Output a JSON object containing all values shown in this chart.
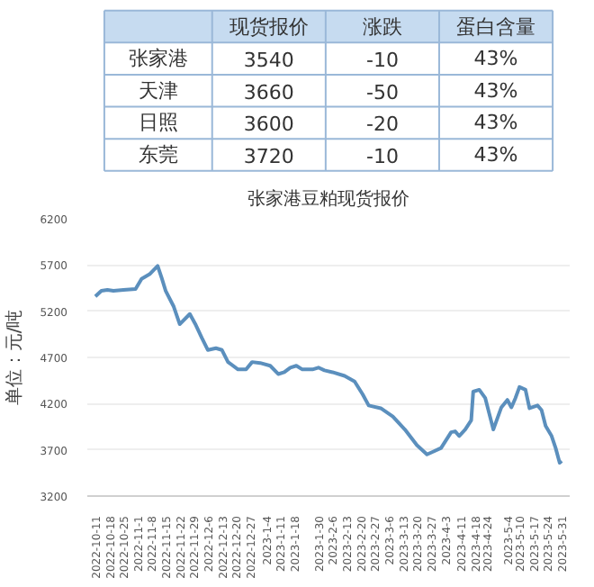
{
  "chart_data": [
    {
      "type": "other",
      "categories": [
        "现货报价",
        "涨跌",
        "蛋白含量"
      ],
      "y_categories": [
        "张家港",
        "天津",
        "日照",
        "东莞"
      ],
      "cell_labels": [
        [
          "3540",
          "-10",
          "43%"
        ],
        [
          "3660",
          "-50",
          "43%"
        ],
        [
          "3600",
          "-20",
          "43%"
        ],
        [
          "3720",
          "-10",
          "43%"
        ]
      ]
    },
    {
      "type": "line",
      "title": "张家港豆粕现货报价",
      "ylabel": "单位：元/吨",
      "grid": "y",
      "marker": "none",
      "line_style": "solid",
      "x": [
        "2022-10-11",
        "2022-10-14",
        "2022-10-17",
        "2022-10-20",
        "2022-10-25",
        "2022-10-31",
        "2022-11-03",
        "2022-11-07",
        "2022-11-11",
        "2022-11-13",
        "2022-11-15",
        "2022-11-19",
        "2022-11-22",
        "2022-11-27",
        "2022-11-30",
        "2022-12-03",
        "2022-12-06",
        "2022-12-10",
        "2022-12-13",
        "2022-12-16",
        "2022-12-21",
        "2022-12-25",
        "2022-12-28",
        "2023-01-01",
        "2023-01-06",
        "2023-01-10",
        "2023-01-13",
        "2023-01-16",
        "2023-01-19",
        "2023-01-22",
        "2023-01-27",
        "2023-01-30",
        "2023-02-02",
        "2023-02-06",
        "2023-02-12",
        "2023-02-17",
        "2023-02-21",
        "2023-02-24",
        "2023-03-02",
        "2023-03-08",
        "2023-03-14",
        "2023-03-20",
        "2023-03-25",
        "2023-03-28",
        "2023-04-01",
        "2023-04-06",
        "2023-04-08",
        "2023-04-10",
        "2023-04-13",
        "2023-04-16",
        "2023-04-17",
        "2023-04-20",
        "2023-04-23",
        "2023-04-25",
        "2023-04-27",
        "2023-05-01",
        "2023-05-04",
        "2023-05-06",
        "2023-05-08",
        "2023-05-10",
        "2023-05-13",
        "2023-05-15",
        "2023-05-19",
        "2023-05-21",
        "2023-05-23",
        "2023-05-26",
        "2023-05-28",
        "2023-05-30",
        "2023-05-31"
      ],
      "series": [
        {
          "color": "#5b8fbd",
          "values": [
            5360,
            5420,
            5430,
            5420,
            5430,
            5440,
            5550,
            5600,
            5690,
            5560,
            5420,
            5250,
            5060,
            5170,
            5050,
            4910,
            4780,
            4800,
            4780,
            4650,
            4570,
            4570,
            4650,
            4640,
            4610,
            4520,
            4540,
            4590,
            4610,
            4570,
            4570,
            4590,
            4560,
            4540,
            4500,
            4440,
            4300,
            4180,
            4150,
            4060,
            3920,
            3750,
            3650,
            3680,
            3720,
            3890,
            3900,
            3850,
            3920,
            4020,
            4330,
            4350,
            4260,
            4090,
            3920,
            4160,
            4240,
            4160,
            4260,
            4380,
            4350,
            4150,
            4180,
            4130,
            3960,
            3850,
            3720,
            3560,
            3580
          ]
        }
      ],
      "xlim": [
        "2022-10-07",
        "2023-06-04"
      ],
      "ylim": [
        3200,
        6200
      ],
      "yticks": [
        3200,
        3700,
        4200,
        4700,
        5200,
        5700,
        6200
      ],
      "xticks": [
        {
          "value": "2022-10-11",
          "label": "2022-10-11"
        },
        {
          "value": "2022-10-18",
          "label": "2022-10-18"
        },
        {
          "value": "2022-10-25",
          "label": "2022-10-25"
        },
        {
          "value": "2022-11-01",
          "label": "2022-11-1"
        },
        {
          "value": "2022-11-08",
          "label": "2022-11-8"
        },
        {
          "value": "2022-11-15",
          "label": "2022-11-15"
        },
        {
          "value": "2022-11-22",
          "label": "2022-11-22"
        },
        {
          "value": "2022-11-29",
          "label": "2022-11-29"
        },
        {
          "value": "2022-12-06",
          "label": "2022-12-6"
        },
        {
          "value": "2022-12-13",
          "label": "2022-12-13"
        },
        {
          "value": "2022-12-20",
          "label": "2022-12-20"
        },
        {
          "value": "2022-12-27",
          "label": "2022-12-27"
        },
        {
          "value": "2023-01-04",
          "label": "2023-1-4"
        },
        {
          "value": "2023-01-11",
          "label": "2023-1-11"
        },
        {
          "value": "2023-01-18",
          "label": "2023-1-18"
        },
        {
          "value": "2023-01-30",
          "label": "2023-1-30"
        },
        {
          "value": "2023-02-06",
          "label": "2023-2-6"
        },
        {
          "value": "2023-02-13",
          "label": "2023-2-13"
        },
        {
          "value": "2023-02-20",
          "label": "2023-2-20"
        },
        {
          "value": "2023-02-27",
          "label": "2023-2-27"
        },
        {
          "value": "2023-03-06",
          "label": "2023-3-6"
        },
        {
          "value": "2023-03-13",
          "label": "2023-3-13"
        },
        {
          "value": "2023-03-20",
          "label": "2023-3-20"
        },
        {
          "value": "2023-03-27",
          "label": "2023-3-27"
        },
        {
          "value": "2023-04-03",
          "label": "2023-4-3"
        },
        {
          "value": "2023-04-11",
          "label": "2023-4-11"
        },
        {
          "value": "2023-04-18",
          "label": "2023-4-18"
        },
        {
          "value": "2023-04-24",
          "label": "2023-4-24"
        },
        {
          "value": "2023-05-04",
          "label": "2023-5-4"
        },
        {
          "value": "2023-05-10",
          "label": "2023-5-10"
        },
        {
          "value": "2023-05-17",
          "label": "2023-5-17"
        },
        {
          "value": "2023-05-24",
          "label": "2023-5-24"
        },
        {
          "value": "2023-05-31",
          "label": "2023-5-31"
        }
      ]
    }
  ]
}
